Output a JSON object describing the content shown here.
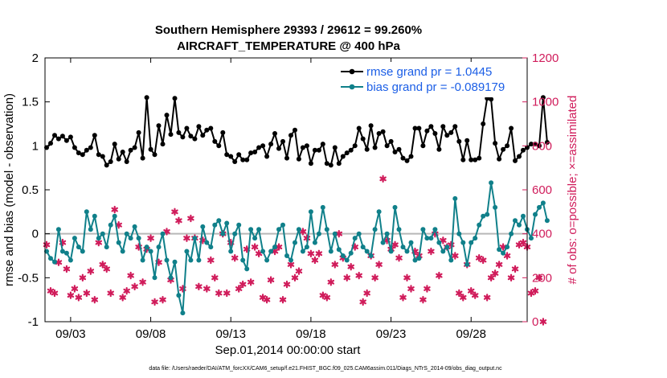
{
  "chart_data": {
    "type": "line",
    "title_line1": "Southern Hemisphere 29393 / 29612 = 99.260%",
    "title_line2": "AIRCRAFT_TEMPERATURE @ 400 hPa",
    "xlabel": "Sep.01,2014 00:00:00 start",
    "ylabel_left": "rmse and bias (model - observation)",
    "ylabel_right": "# of obs: o=possible; ×=assimilated",
    "footer": "data file: /Users/raeder/DAI/ATM_forcXX/CAM6_setup/f.e21.FHIST_BGC.f09_025.CAM6assim.011/Diags_NTrS_2014-09/obs_diag_output.nc",
    "x_range": [
      1.4,
      31.5
    ],
    "x_ticks": [
      3,
      8,
      13,
      18,
      23,
      28
    ],
    "x_tick_labels": [
      "09/03",
      "09/08",
      "09/13",
      "09/18",
      "09/23",
      "09/28"
    ],
    "ylim_left": [
      -1,
      2
    ],
    "y_ticks_left": [
      -1,
      -0.5,
      0,
      0.5,
      1,
      1.5,
      2
    ],
    "y_tick_labels_left": [
      "-1",
      "-0.5",
      "0",
      "0.5",
      "1",
      "1.5",
      "2"
    ],
    "ylim_right": [
      0,
      1200
    ],
    "y_ticks_right": [
      0,
      200,
      400,
      600,
      800,
      1000,
      1200
    ],
    "y_tick_labels_right": [
      "0",
      "200",
      "400",
      "600",
      "800",
      "1000",
      "1200"
    ],
    "x_start": 1.5,
    "x_step": 0.25,
    "series": [
      {
        "name": "rmse grand pr = 1.0445",
        "color": "#000000",
        "axis": "left",
        "values": [
          0.98,
          1.03,
          1.12,
          1.08,
          1.11,
          1.06,
          1.1,
          0.98,
          0.92,
          0.9,
          0.95,
          0.98,
          1.12,
          0.9,
          0.88,
          0.78,
          0.82,
          1.02,
          0.85,
          0.93,
          0.82,
          0.95,
          0.98,
          1.15,
          0.86,
          1.55,
          0.96,
          0.9,
          1.23,
          1.02,
          1.35,
          1.13,
          1.54,
          1.15,
          1.1,
          1.2,
          1.11,
          1.08,
          1.22,
          1.12,
          1.18,
          1.2,
          1.05,
          1.0,
          1.15,
          0.9,
          0.88,
          0.82,
          0.9,
          0.84,
          0.84,
          0.92,
          0.93,
          0.98,
          1.0,
          0.88,
          1.02,
          1.14,
          0.97,
          1.05,
          0.86,
          1.12,
          1.18,
          0.85,
          0.98,
          1.0,
          0.8,
          0.95,
          0.95,
          1.02,
          0.8,
          0.78,
          0.98,
          0.8,
          0.88,
          0.92,
          0.95,
          1.0,
          1.2,
          1.08,
          0.96,
          1.23,
          0.98,
          1.14,
          1.16,
          1.0,
          1.05,
          0.93,
          0.96,
          0.86,
          0.83,
          0.88,
          1.2,
          1.2,
          1.0,
          1.17,
          1.22,
          1.14,
          0.96,
          1.22,
          1.12,
          1.15,
          1.22,
          1.05,
          0.84,
          1.06,
          0.84,
          0.84,
          0.86,
          1.25,
          1.54,
          1.53,
          1.03,
          0.85,
          0.96,
          1.0,
          1.2,
          0.83,
          0.88,
          0.95,
          0.98,
          1.02,
          1.02,
          1.0,
          1.55,
          1.04
        ]
      },
      {
        "name": "bias grand pr = -0.089179",
        "color": "#10808a",
        "axis": "left",
        "values": [
          -0.2,
          -0.28,
          -0.32,
          0.05,
          -0.2,
          -0.22,
          -0.3,
          -0.05,
          -0.15,
          -0.2,
          0.25,
          0.05,
          0.2,
          -0.05,
          0.0,
          -0.15,
          0.1,
          0.2,
          -0.1,
          -0.2,
          0.0,
          -0.05,
          0.08,
          -0.05,
          -0.3,
          -0.15,
          -0.2,
          -0.5,
          -0.15,
          0.0,
          -0.3,
          -0.5,
          -0.32,
          -0.7,
          -0.9,
          -0.2,
          -0.3,
          -0.05,
          -0.3,
          0.08,
          -0.1,
          -0.15,
          0.1,
          0.15,
          0.0,
          0.12,
          -0.2,
          0.0,
          0.1,
          -0.3,
          -0.4,
          0.05,
          -0.05,
          0.05,
          -0.2,
          -0.3,
          -0.2,
          -0.15,
          0.05,
          0.1,
          -0.25,
          -0.3,
          -0.1,
          0.05,
          -0.2,
          -0.15,
          0.25,
          -0.1,
          0.0,
          0.3,
          0.05,
          -0.2,
          0.0,
          -0.18,
          -0.25,
          -0.3,
          -0.22,
          -0.05,
          0.0,
          -0.15,
          -0.2,
          -0.25,
          0.05,
          0.25,
          -0.1,
          0.0,
          -0.2,
          0.3,
          0.05,
          -0.15,
          -0.2,
          -0.1,
          -0.3,
          -0.28,
          0.05,
          -0.05,
          -0.05,
          0.05,
          -0.1,
          -0.2,
          -0.15,
          -0.3,
          0.4,
          0.0,
          -0.1,
          -0.35,
          -0.1,
          -0.05,
          0.1,
          0.2,
          0.22,
          0.58,
          0.3,
          -0.18,
          -0.22,
          -0.15,
          0.0,
          0.15,
          0.1,
          0.2,
          0.05,
          -0.05,
          0.22,
          0.3,
          0.35,
          0.15
        ]
      }
    ],
    "obs_color": "#d01c5b",
    "obs_assimilated_values": [
      350,
      140,
      130,
      270,
      360,
      240,
      120,
      150,
      110,
      200,
      130,
      230,
      100,
      360,
      260,
      240,
      130,
      510,
      440,
      110,
      140,
      210,
      160,
      340,
      180,
      330,
      380,
      90,
      270,
      100,
      410,
      190,
      500,
      460,
      150,
      380,
      470,
      380,
      160,
      370,
      150,
      280,
      200,
      130,
      400,
      130,
      360,
      290,
      150,
      170,
      330,
      180,
      340,
      310,
      110,
      100,
      190,
      320,
      340,
      100,
      170,
      260,
      200,
      230,
      410,
      380,
      310,
      280,
      310,
      120,
      110,
      180,
      260,
      400,
      290,
      200,
      250,
      340,
      210,
      90,
      130,
      300,
      200,
      260,
      650,
      370,
      330,
      350,
      290,
      110,
      200,
      150,
      320,
      300,
      100,
      150,
      320,
      400,
      210,
      370,
      340,
      350,
      300,
      130,
      110,
      260,
      140,
      120,
      290,
      280,
      110,
      200,
      220,
      260,
      340,
      300,
      200,
      240,
      350,
      360,
      340,
      130,
      140,
      200,
      0
    ]
  }
}
